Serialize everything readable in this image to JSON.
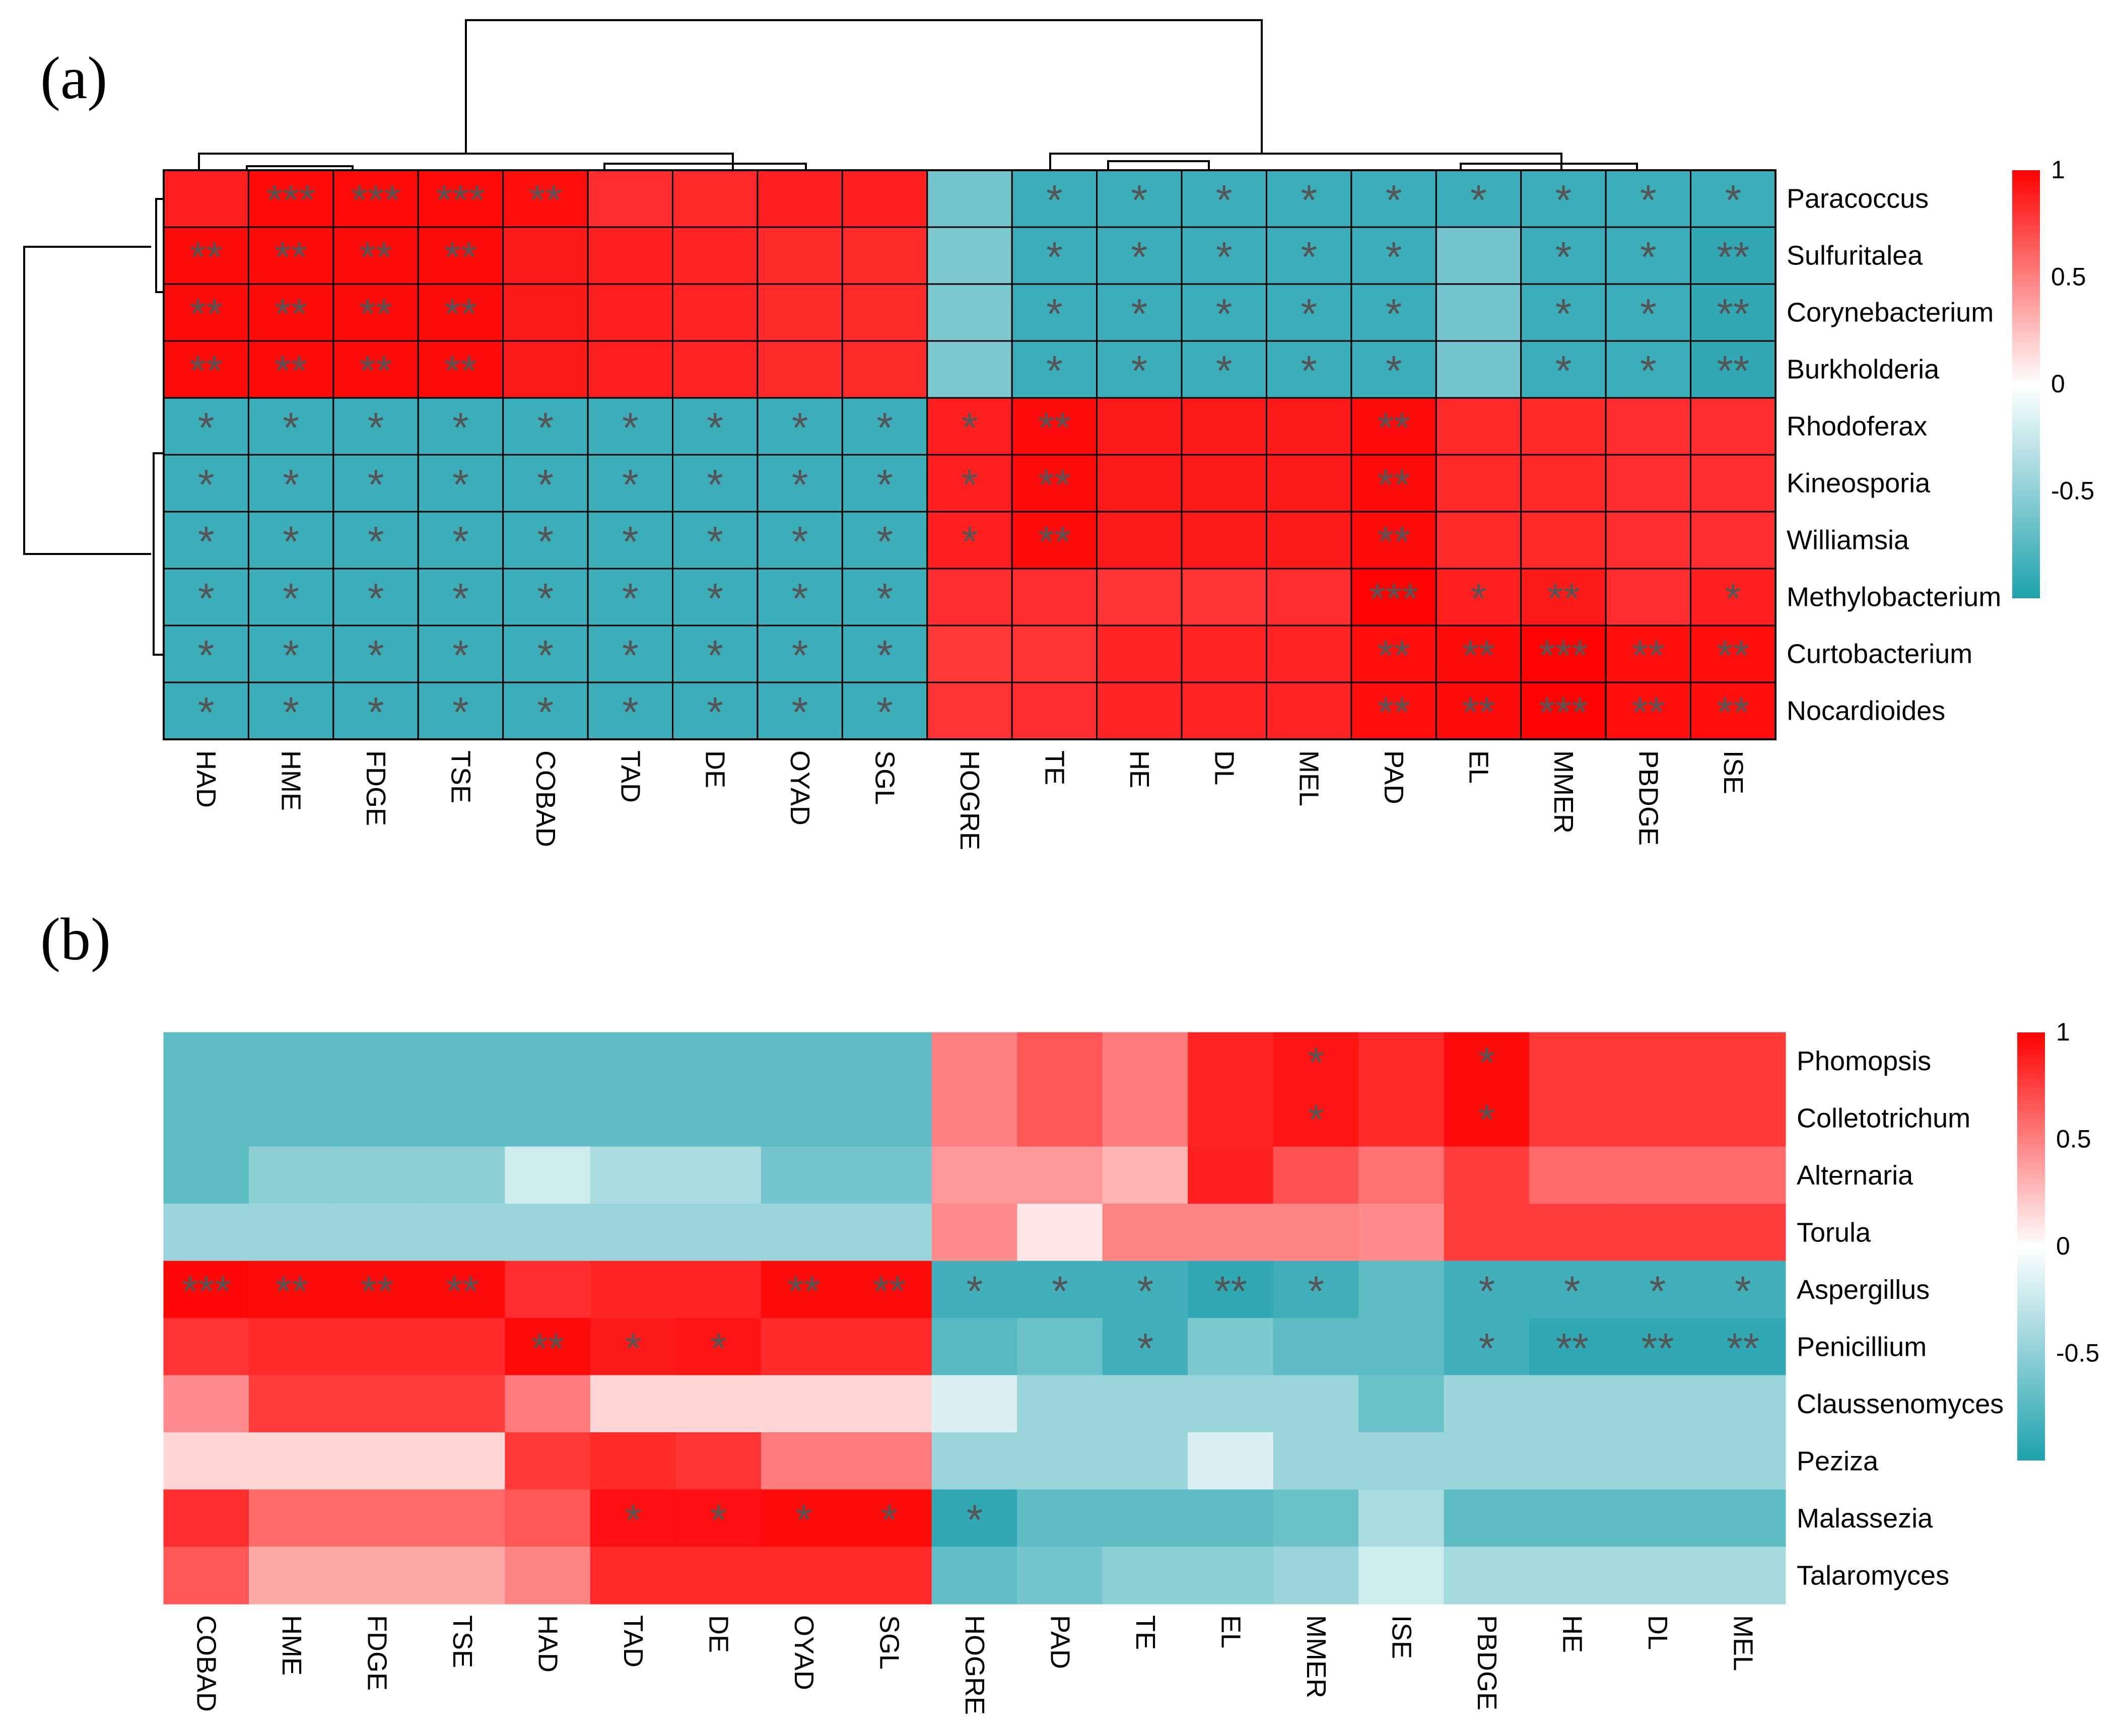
{
  "chart_data": [
    {
      "panel": "(a)",
      "type": "heatmap",
      "clustered": true,
      "rows": [
        "Paracoccus",
        "Sulfuritalea",
        "Corynebacterium",
        "Burkholderia",
        "Rhodoferax",
        "Kineosporia",
        "Williamsia",
        "Methylobacterium",
        "Curtobacterium",
        "Nocardioides"
      ],
      "columns": [
        "HAD",
        "HME",
        "FDGE",
        "TSE",
        "COBAD",
        "TAD",
        "DE",
        "OYAD",
        "SGL",
        "HOGRE",
        "TE",
        "HE",
        "DL",
        "MEL",
        "PAD",
        "EL",
        "MMER",
        "PBDGE",
        "ISE"
      ],
      "values": [
        [
          0.88,
          0.97,
          0.97,
          0.97,
          0.95,
          0.82,
          0.84,
          0.88,
          0.88,
          -0.62,
          -0.87,
          -0.87,
          -0.87,
          -0.87,
          -0.87,
          -0.87,
          -0.87,
          -0.87,
          -0.87
        ],
        [
          0.96,
          0.96,
          0.96,
          0.96,
          0.9,
          0.88,
          0.86,
          0.83,
          0.83,
          -0.58,
          -0.87,
          -0.87,
          -0.87,
          -0.87,
          -0.87,
          -0.62,
          -0.87,
          -0.87,
          -0.92
        ],
        [
          0.96,
          0.96,
          0.96,
          0.96,
          0.9,
          0.88,
          0.86,
          0.83,
          0.83,
          -0.58,
          -0.87,
          -0.87,
          -0.87,
          -0.87,
          -0.87,
          -0.62,
          -0.87,
          -0.87,
          -0.92
        ],
        [
          0.96,
          0.96,
          0.96,
          0.96,
          0.9,
          0.88,
          0.86,
          0.83,
          0.83,
          -0.58,
          -0.87,
          -0.87,
          -0.87,
          -0.87,
          -0.87,
          -0.62,
          -0.87,
          -0.87,
          -0.92
        ],
        [
          -0.87,
          -0.87,
          -0.87,
          -0.87,
          -0.87,
          -0.87,
          -0.87,
          -0.87,
          -0.87,
          0.88,
          0.96,
          0.9,
          0.9,
          0.9,
          0.96,
          0.84,
          0.84,
          0.82,
          0.82
        ],
        [
          -0.87,
          -0.87,
          -0.87,
          -0.87,
          -0.87,
          -0.87,
          -0.87,
          -0.87,
          -0.87,
          0.88,
          0.96,
          0.9,
          0.9,
          0.9,
          0.96,
          0.84,
          0.84,
          0.82,
          0.82
        ],
        [
          -0.87,
          -0.87,
          -0.87,
          -0.87,
          -0.87,
          -0.87,
          -0.87,
          -0.87,
          -0.87,
          0.88,
          0.96,
          0.9,
          0.9,
          0.9,
          0.96,
          0.84,
          0.84,
          0.82,
          0.82
        ],
        [
          -0.87,
          -0.87,
          -0.87,
          -0.87,
          -0.87,
          -0.87,
          -0.87,
          -0.87,
          -0.87,
          0.82,
          0.82,
          0.8,
          0.8,
          0.82,
          0.99,
          0.88,
          0.9,
          0.82,
          0.88
        ],
        [
          -0.87,
          -0.87,
          -0.87,
          -0.87,
          -0.87,
          -0.87,
          -0.87,
          -0.87,
          -0.87,
          0.78,
          0.8,
          0.86,
          0.86,
          0.86,
          0.95,
          0.96,
          0.99,
          0.95,
          0.95
        ],
        [
          -0.87,
          -0.87,
          -0.87,
          -0.87,
          -0.87,
          -0.87,
          -0.87,
          -0.87,
          -0.87,
          0.8,
          0.82,
          0.86,
          0.86,
          0.86,
          0.95,
          0.96,
          0.99,
          0.95,
          0.95
        ]
      ],
      "significance": [
        [
          "",
          "***",
          "***",
          "***",
          "**",
          "",
          "",
          "",
          "",
          "",
          "*",
          "*",
          "*",
          "*",
          "*",
          "*",
          "*",
          "*",
          "*"
        ],
        [
          "**",
          "**",
          "**",
          "**",
          "",
          "",
          "",
          "",
          "",
          "",
          "*",
          "*",
          "*",
          "*",
          "*",
          "",
          "*",
          "*",
          "**"
        ],
        [
          "**",
          "**",
          "**",
          "**",
          "",
          "",
          "",
          "",
          "",
          "",
          "*",
          "*",
          "*",
          "*",
          "*",
          "",
          "*",
          "*",
          "**"
        ],
        [
          "**",
          "**",
          "**",
          "**",
          "",
          "",
          "",
          "",
          "",
          "",
          "*",
          "*",
          "*",
          "*",
          "*",
          "",
          "*",
          "*",
          "**"
        ],
        [
          "*",
          "*",
          "*",
          "*",
          "*",
          "*",
          "*",
          "*",
          "*",
          "*",
          "**",
          "",
          "",
          "",
          "**",
          "",
          "",
          "",
          ""
        ],
        [
          "*",
          "*",
          "*",
          "*",
          "*",
          "*",
          "*",
          "*",
          "*",
          "*",
          "**",
          "",
          "",
          "",
          "**",
          "",
          "",
          "",
          ""
        ],
        [
          "*",
          "*",
          "*",
          "*",
          "*",
          "*",
          "*",
          "*",
          "*",
          "*",
          "**",
          "",
          "",
          "",
          "**",
          "",
          "",
          "",
          ""
        ],
        [
          "*",
          "*",
          "*",
          "*",
          "*",
          "*",
          "*",
          "*",
          "*",
          "",
          "",
          "",
          "",
          "",
          "***",
          "*",
          "**",
          "",
          "*"
        ],
        [
          "*",
          "*",
          "*",
          "*",
          "*",
          "*",
          "*",
          "*",
          "*",
          "",
          "",
          "",
          "",
          "",
          "**",
          "**",
          "***",
          "**",
          "**"
        ],
        [
          "*",
          "*",
          "*",
          "*",
          "*",
          "*",
          "*",
          "*",
          "*",
          "",
          "",
          "",
          "",
          "",
          "**",
          "**",
          "***",
          "**",
          "**"
        ]
      ],
      "legend": {
        "ticks": [
          "1",
          "0.5",
          "0",
          "-0.5"
        ],
        "range": [
          -1,
          1
        ]
      }
    },
    {
      "panel": "(b)",
      "type": "heatmap",
      "clustered": false,
      "rows": [
        "Phomopsis",
        "Colletotrichum",
        "Alternaria",
        "Torula",
        "Aspergillus",
        "Penicillium",
        "Claussenomyces",
        "Peziza",
        "Malassezia",
        "Talaromyces"
      ],
      "columns": [
        "COBAD",
        "HME",
        "FDGE",
        "TSE",
        "HAD",
        "TAD",
        "DE",
        "OYAD",
        "SGL",
        "HOGRE",
        "PAD",
        "TE",
        "EL",
        "MMER",
        "ISE",
        "PBDGE",
        "HE",
        "DL",
        "MEL"
      ],
      "values": [
        [
          -0.72,
          -0.72,
          -0.72,
          -0.72,
          -0.72,
          -0.72,
          -0.72,
          -0.72,
          -0.72,
          0.5,
          0.66,
          0.52,
          0.86,
          0.92,
          0.84,
          0.96,
          0.78,
          0.78,
          0.78
        ],
        [
          -0.72,
          -0.72,
          -0.72,
          -0.72,
          -0.72,
          -0.72,
          -0.72,
          -0.72,
          -0.72,
          0.5,
          0.66,
          0.52,
          0.86,
          0.92,
          0.84,
          0.96,
          0.78,
          0.78,
          0.78
        ],
        [
          -0.72,
          -0.52,
          -0.52,
          -0.52,
          -0.22,
          -0.38,
          -0.38,
          -0.62,
          -0.62,
          0.4,
          0.4,
          0.3,
          0.88,
          0.68,
          0.56,
          0.76,
          0.58,
          0.58,
          0.58
        ],
        [
          -0.45,
          -0.45,
          -0.45,
          -0.45,
          -0.45,
          -0.45,
          -0.45,
          -0.45,
          -0.45,
          0.45,
          0.1,
          0.48,
          0.48,
          0.48,
          0.45,
          0.76,
          0.76,
          0.76,
          0.76
        ],
        [
          0.98,
          0.96,
          0.96,
          0.96,
          0.82,
          0.86,
          0.86,
          0.96,
          0.96,
          -0.85,
          -0.85,
          -0.85,
          -0.92,
          -0.85,
          -0.72,
          -0.85,
          -0.85,
          -0.85,
          -0.85
        ],
        [
          0.8,
          0.84,
          0.84,
          0.84,
          0.96,
          0.9,
          0.92,
          0.84,
          0.84,
          -0.75,
          -0.66,
          -0.85,
          -0.58,
          -0.72,
          -0.72,
          -0.85,
          -0.92,
          -0.92,
          -0.92
        ],
        [
          0.45,
          0.76,
          0.76,
          0.76,
          0.52,
          0.16,
          0.16,
          0.16,
          0.16,
          -0.16,
          -0.45,
          -0.45,
          -0.45,
          -0.45,
          -0.66,
          -0.45,
          -0.45,
          -0.45,
          -0.45
        ],
        [
          0.16,
          0.16,
          0.16,
          0.16,
          0.78,
          0.84,
          0.8,
          0.52,
          0.52,
          -0.45,
          -0.45,
          -0.45,
          -0.16,
          -0.45,
          -0.45,
          -0.45,
          -0.45,
          -0.45,
          -0.45
        ],
        [
          0.82,
          0.58,
          0.58,
          0.58,
          0.66,
          0.94,
          0.94,
          0.96,
          0.96,
          -0.92,
          -0.72,
          -0.72,
          -0.72,
          -0.66,
          -0.38,
          -0.72,
          -0.72,
          -0.72,
          -0.72
        ],
        [
          0.66,
          0.34,
          0.34,
          0.34,
          0.48,
          0.84,
          0.84,
          0.84,
          0.84,
          -0.7,
          -0.62,
          -0.52,
          -0.52,
          -0.45,
          -0.22,
          -0.4,
          -0.4,
          -0.4,
          -0.4
        ]
      ],
      "significance": [
        [
          "",
          "",
          "",
          "",
          "",
          "",
          "",
          "",
          "",
          "",
          "",
          "",
          "",
          "*",
          "",
          "*",
          "",
          "",
          ""
        ],
        [
          "",
          "",
          "",
          "",
          "",
          "",
          "",
          "",
          "",
          "",
          "",
          "",
          "",
          "*",
          "",
          "*",
          "",
          "",
          ""
        ],
        [
          "",
          "",
          "",
          "",
          "",
          "",
          "",
          "",
          "",
          "",
          "",
          "",
          "",
          "",
          "",
          "",
          "",
          "",
          ""
        ],
        [
          "",
          "",
          "",
          "",
          "",
          "",
          "",
          "",
          "",
          "",
          "",
          "",
          "",
          "",
          "",
          "",
          "",
          "",
          ""
        ],
        [
          "***",
          "**",
          "**",
          "**",
          "",
          "",
          "",
          "**",
          "**",
          "*",
          "*",
          "*",
          "**",
          "*",
          "",
          "*",
          "*",
          "*",
          "*"
        ],
        [
          "",
          "",
          "",
          "",
          "**",
          "*",
          "*",
          "",
          "",
          "",
          "",
          "*",
          "",
          "",
          "",
          "*",
          "**",
          "**",
          "**"
        ],
        [
          "",
          "",
          "",
          "",
          "",
          "",
          "",
          "",
          "",
          "",
          "",
          "",
          "",
          "",
          "",
          "",
          "",
          "",
          ""
        ],
        [
          "",
          "",
          "",
          "",
          "",
          "",
          "",
          "",
          "",
          "",
          "",
          "",
          "",
          "",
          "",
          "",
          "",
          "",
          ""
        ],
        [
          "",
          "",
          "",
          "",
          "",
          "*",
          "*",
          "*",
          "*",
          "*",
          "",
          "",
          "",
          "",
          "",
          "",
          "",
          "",
          ""
        ],
        [
          "",
          "",
          "",
          "",
          "",
          "",
          "",
          "",
          "",
          "",
          "",
          "",
          "",
          "",
          "",
          "",
          "",
          "",
          ""
        ]
      ],
      "legend": {
        "ticks": [
          "1",
          "0.5",
          "0",
          "-0.5"
        ],
        "range": [
          -1,
          1
        ]
      }
    }
  ]
}
